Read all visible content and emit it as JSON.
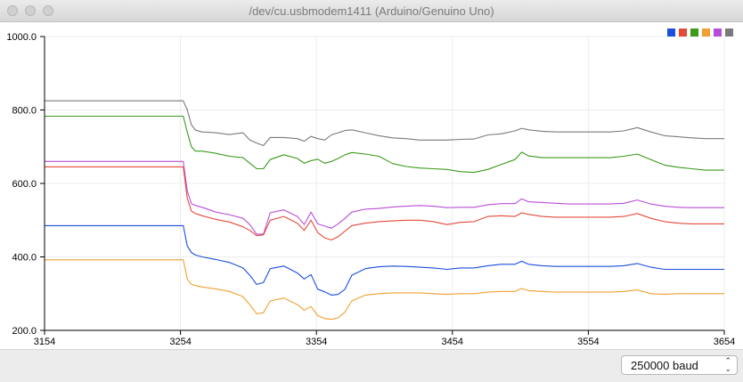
{
  "window": {
    "title": "/dev/cu.usbmodem1411 (Arduino/Genuino Uno)"
  },
  "footer": {
    "baud_selected": "250000 baud"
  },
  "chart_data": {
    "type": "line",
    "xlim": [
      3154,
      3654
    ],
    "ylim": [
      200,
      1000
    ],
    "x_ticks": [
      3154,
      3254,
      3354,
      3454,
      3554,
      3654
    ],
    "y_ticks": [
      200.0,
      400.0,
      600.0,
      800.0,
      1000.0
    ],
    "x_tick_labels": [
      "3154",
      "3254",
      "3354",
      "3454",
      "3554",
      "3654"
    ],
    "y_tick_labels": [
      "200.0",
      "400.0",
      "600.0",
      "800.0",
      "1000.0"
    ],
    "grid": true,
    "legend": "top-right",
    "x": [
      3154,
      3256,
      3259,
      3262,
      3265,
      3270,
      3280,
      3290,
      3300,
      3305,
      3310,
      3315,
      3320,
      3330,
      3340,
      3345,
      3350,
      3355,
      3360,
      3365,
      3370,
      3375,
      3380,
      3390,
      3400,
      3410,
      3420,
      3430,
      3440,
      3450,
      3460,
      3470,
      3480,
      3490,
      3500,
      3505,
      3510,
      3520,
      3530,
      3540,
      3550,
      3560,
      3570,
      3580,
      3590,
      3600,
      3610,
      3620,
      3630,
      3640,
      3654
    ],
    "series": [
      {
        "color": "#7a7a7a",
        "values": [
          825,
          825,
          800,
          760,
          745,
          740,
          738,
          733,
          738,
          718,
          710,
          703,
          725,
          725,
          722,
          715,
          728,
          722,
          718,
          732,
          738,
          744,
          746,
          738,
          730,
          724,
          722,
          718,
          718,
          718,
          720,
          721,
          732,
          735,
          743,
          750,
          746,
          742,
          740,
          740,
          740,
          740,
          740,
          743,
          752,
          740,
          730,
          727,
          724,
          722,
          722
        ]
      },
      {
        "color": "#3a9a1a",
        "values": [
          783,
          783,
          740,
          700,
          688,
          688,
          682,
          674,
          670,
          655,
          640,
          640,
          665,
          678,
          668,
          655,
          662,
          666,
          655,
          660,
          668,
          678,
          684,
          680,
          674,
          654,
          646,
          642,
          640,
          638,
          632,
          630,
          638,
          652,
          665,
          685,
          675,
          670,
          670,
          670,
          670,
          670,
          670,
          674,
          680,
          665,
          650,
          644,
          640,
          636,
          636
        ]
      },
      {
        "color": "#b84ed8",
        "values": [
          660,
          660,
          580,
          545,
          540,
          535,
          522,
          515,
          505,
          488,
          462,
          462,
          520,
          528,
          510,
          488,
          522,
          490,
          484,
          478,
          490,
          505,
          522,
          530,
          532,
          536,
          538,
          540,
          538,
          534,
          535,
          535,
          542,
          545,
          545,
          558,
          550,
          548,
          546,
          544,
          544,
          544,
          544,
          546,
          555,
          544,
          538,
          535,
          534,
          534,
          534
        ]
      },
      {
        "color": "#e44a3a",
        "values": [
          645,
          645,
          560,
          525,
          518,
          512,
          502,
          495,
          482,
          472,
          458,
          460,
          500,
          510,
          492,
          472,
          500,
          466,
          452,
          446,
          455,
          470,
          485,
          492,
          496,
          498,
          500,
          500,
          496,
          488,
          494,
          496,
          510,
          512,
          510,
          520,
          516,
          510,
          508,
          508,
          508,
          508,
          508,
          510,
          518,
          505,
          496,
          492,
          490,
          490,
          490
        ]
      },
      {
        "color": "#1a4ee0",
        "values": [
          485,
          485,
          430,
          412,
          405,
          400,
          393,
          385,
          370,
          350,
          325,
          330,
          368,
          375,
          356,
          340,
          352,
          312,
          305,
          296,
          298,
          312,
          350,
          368,
          373,
          375,
          374,
          372,
          370,
          366,
          370,
          370,
          376,
          380,
          380,
          388,
          380,
          376,
          374,
          374,
          374,
          374,
          374,
          376,
          382,
          372,
          366,
          366,
          366,
          366,
          366
        ]
      },
      {
        "color": "#f0a030",
        "values": [
          392,
          392,
          340,
          325,
          322,
          318,
          313,
          306,
          292,
          270,
          245,
          248,
          280,
          288,
          270,
          255,
          265,
          240,
          232,
          230,
          234,
          250,
          280,
          296,
          300,
          302,
          302,
          302,
          300,
          298,
          300,
          300,
          304,
          306,
          306,
          314,
          308,
          306,
          304,
          304,
          304,
          304,
          304,
          306,
          310,
          300,
          298,
          300,
          300,
          300,
          300
        ]
      }
    ]
  }
}
